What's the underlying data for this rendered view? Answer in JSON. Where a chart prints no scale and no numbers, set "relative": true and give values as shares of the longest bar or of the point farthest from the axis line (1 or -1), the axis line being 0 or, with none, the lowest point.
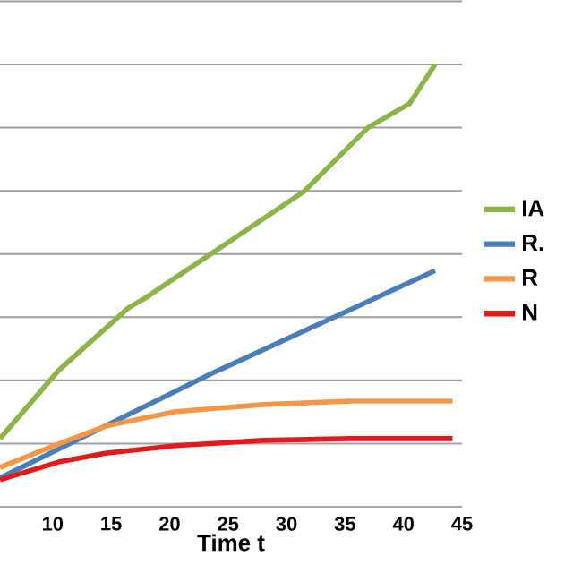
{
  "chart_data": {
    "type": "line",
    "relative": true,
    "xlabel": "Time t",
    "xlim": [
      5.5,
      45
    ],
    "xticks": [
      10,
      15,
      20,
      25,
      30,
      35,
      40,
      45
    ],
    "grid": "y",
    "legend": "right",
    "series": [
      {
        "name": "IA",
        "color": "#8db34a",
        "x": [
          5.5,
          10.5,
          16.5,
          17.8,
          23.5,
          31.5,
          37,
          40.5,
          42.7
        ],
        "values": [
          0.154,
          0.308,
          0.45,
          0.47,
          0.571,
          0.713,
          0.858,
          0.911,
          1.0
        ]
      },
      {
        "name": "R.",
        "color": "#4a7ebb",
        "x": [
          5.5,
          23.5,
          42.7
        ],
        "values": [
          0.065,
          0.3,
          0.534
        ]
      },
      {
        "name": "R",
        "color": "#f79646",
        "x": [
          5.5,
          10.5,
          14.5,
          20.5,
          28,
          35.5,
          44.2
        ],
        "values": [
          0.089,
          0.142,
          0.182,
          0.215,
          0.231,
          0.239,
          0.239
        ]
      },
      {
        "name": "N",
        "color": "#e31a1c",
        "x": [
          5.5,
          10.5,
          14.5,
          20.5,
          28,
          35.5,
          44.2
        ],
        "values": [
          0.061,
          0.101,
          0.121,
          0.138,
          0.15,
          0.154,
          0.154
        ]
      }
    ]
  }
}
